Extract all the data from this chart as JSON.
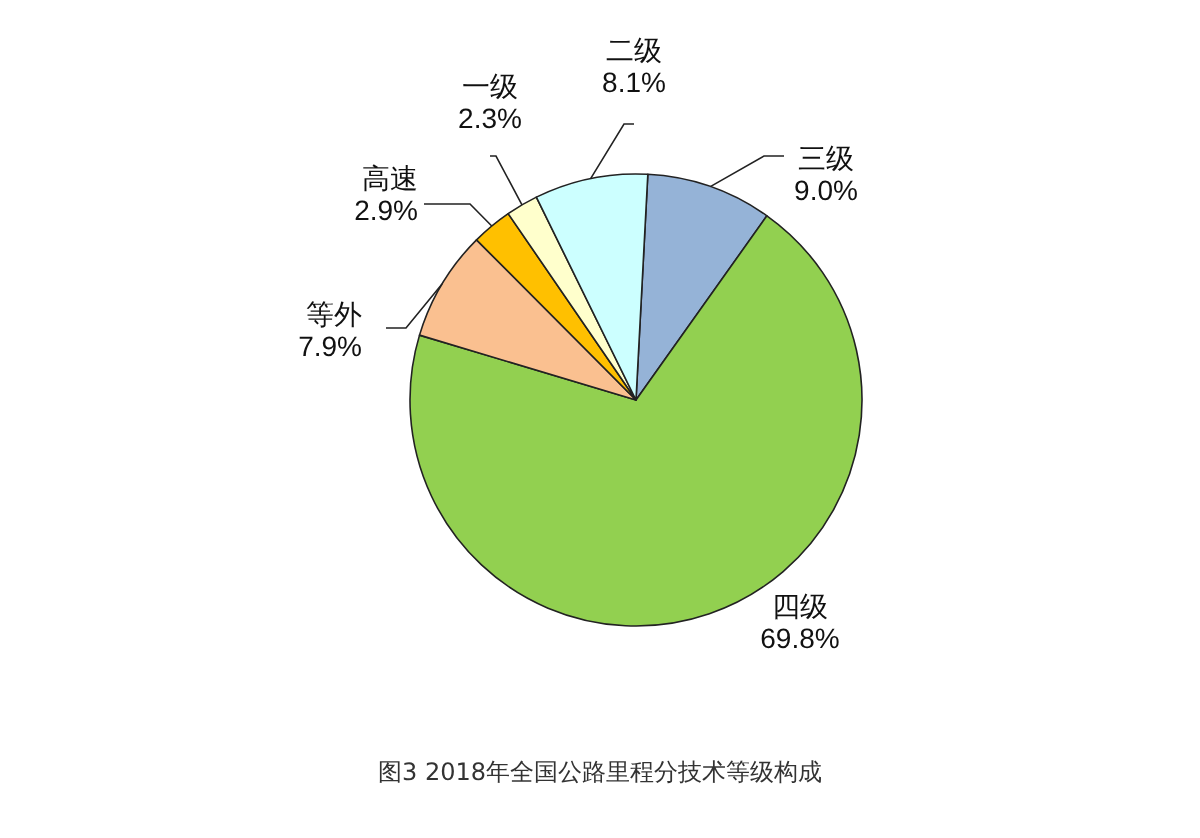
{
  "chart_data": {
    "type": "pie",
    "title": "图3 2018年全国公路里程分技术等级构成",
    "categories": [
      "三级",
      "四级",
      "等外",
      "高速",
      "一级",
      "二级"
    ],
    "values": [
      9.0,
      69.8,
      7.9,
      2.9,
      2.3,
      8.1
    ],
    "value_labels": [
      "9.0%",
      "69.8%",
      "7.9%",
      "2.9%",
      "2.3%",
      "8.1%"
    ],
    "colors": [
      "#95b3d7",
      "#92d050",
      "#fac090",
      "#ffc000",
      "#ffffcc",
      "#ccffff"
    ]
  }
}
